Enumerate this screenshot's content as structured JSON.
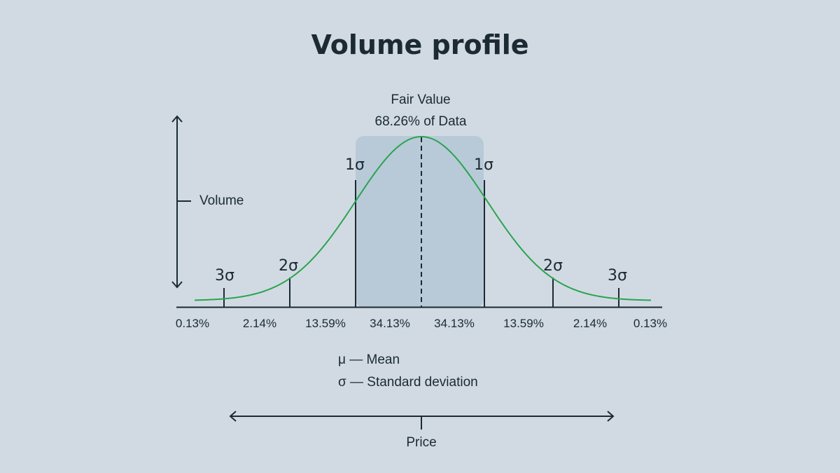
{
  "title": "Volume profile",
  "fair_value": {
    "label": "Fair Value",
    "sublabel": "68.26% of Data"
  },
  "axes": {
    "y_label": "Volume",
    "x_label": "Price"
  },
  "sigma_markers": [
    "3σ",
    "2σ",
    "1σ",
    "1σ",
    "2σ",
    "3σ"
  ],
  "segment_percentages": [
    "0.13%",
    "2.14%",
    "13.59%",
    "34.13%",
    "34.13%",
    "13.59%",
    "2.14%",
    "0.13%"
  ],
  "legend": {
    "mean": "μ — Mean",
    "std": "σ — Standard deviation"
  },
  "colors": {
    "background": "#d1dae3",
    "curve": "#2aa44f",
    "fair_value_band": "#b8cad8",
    "text": "#1b2a33"
  }
}
